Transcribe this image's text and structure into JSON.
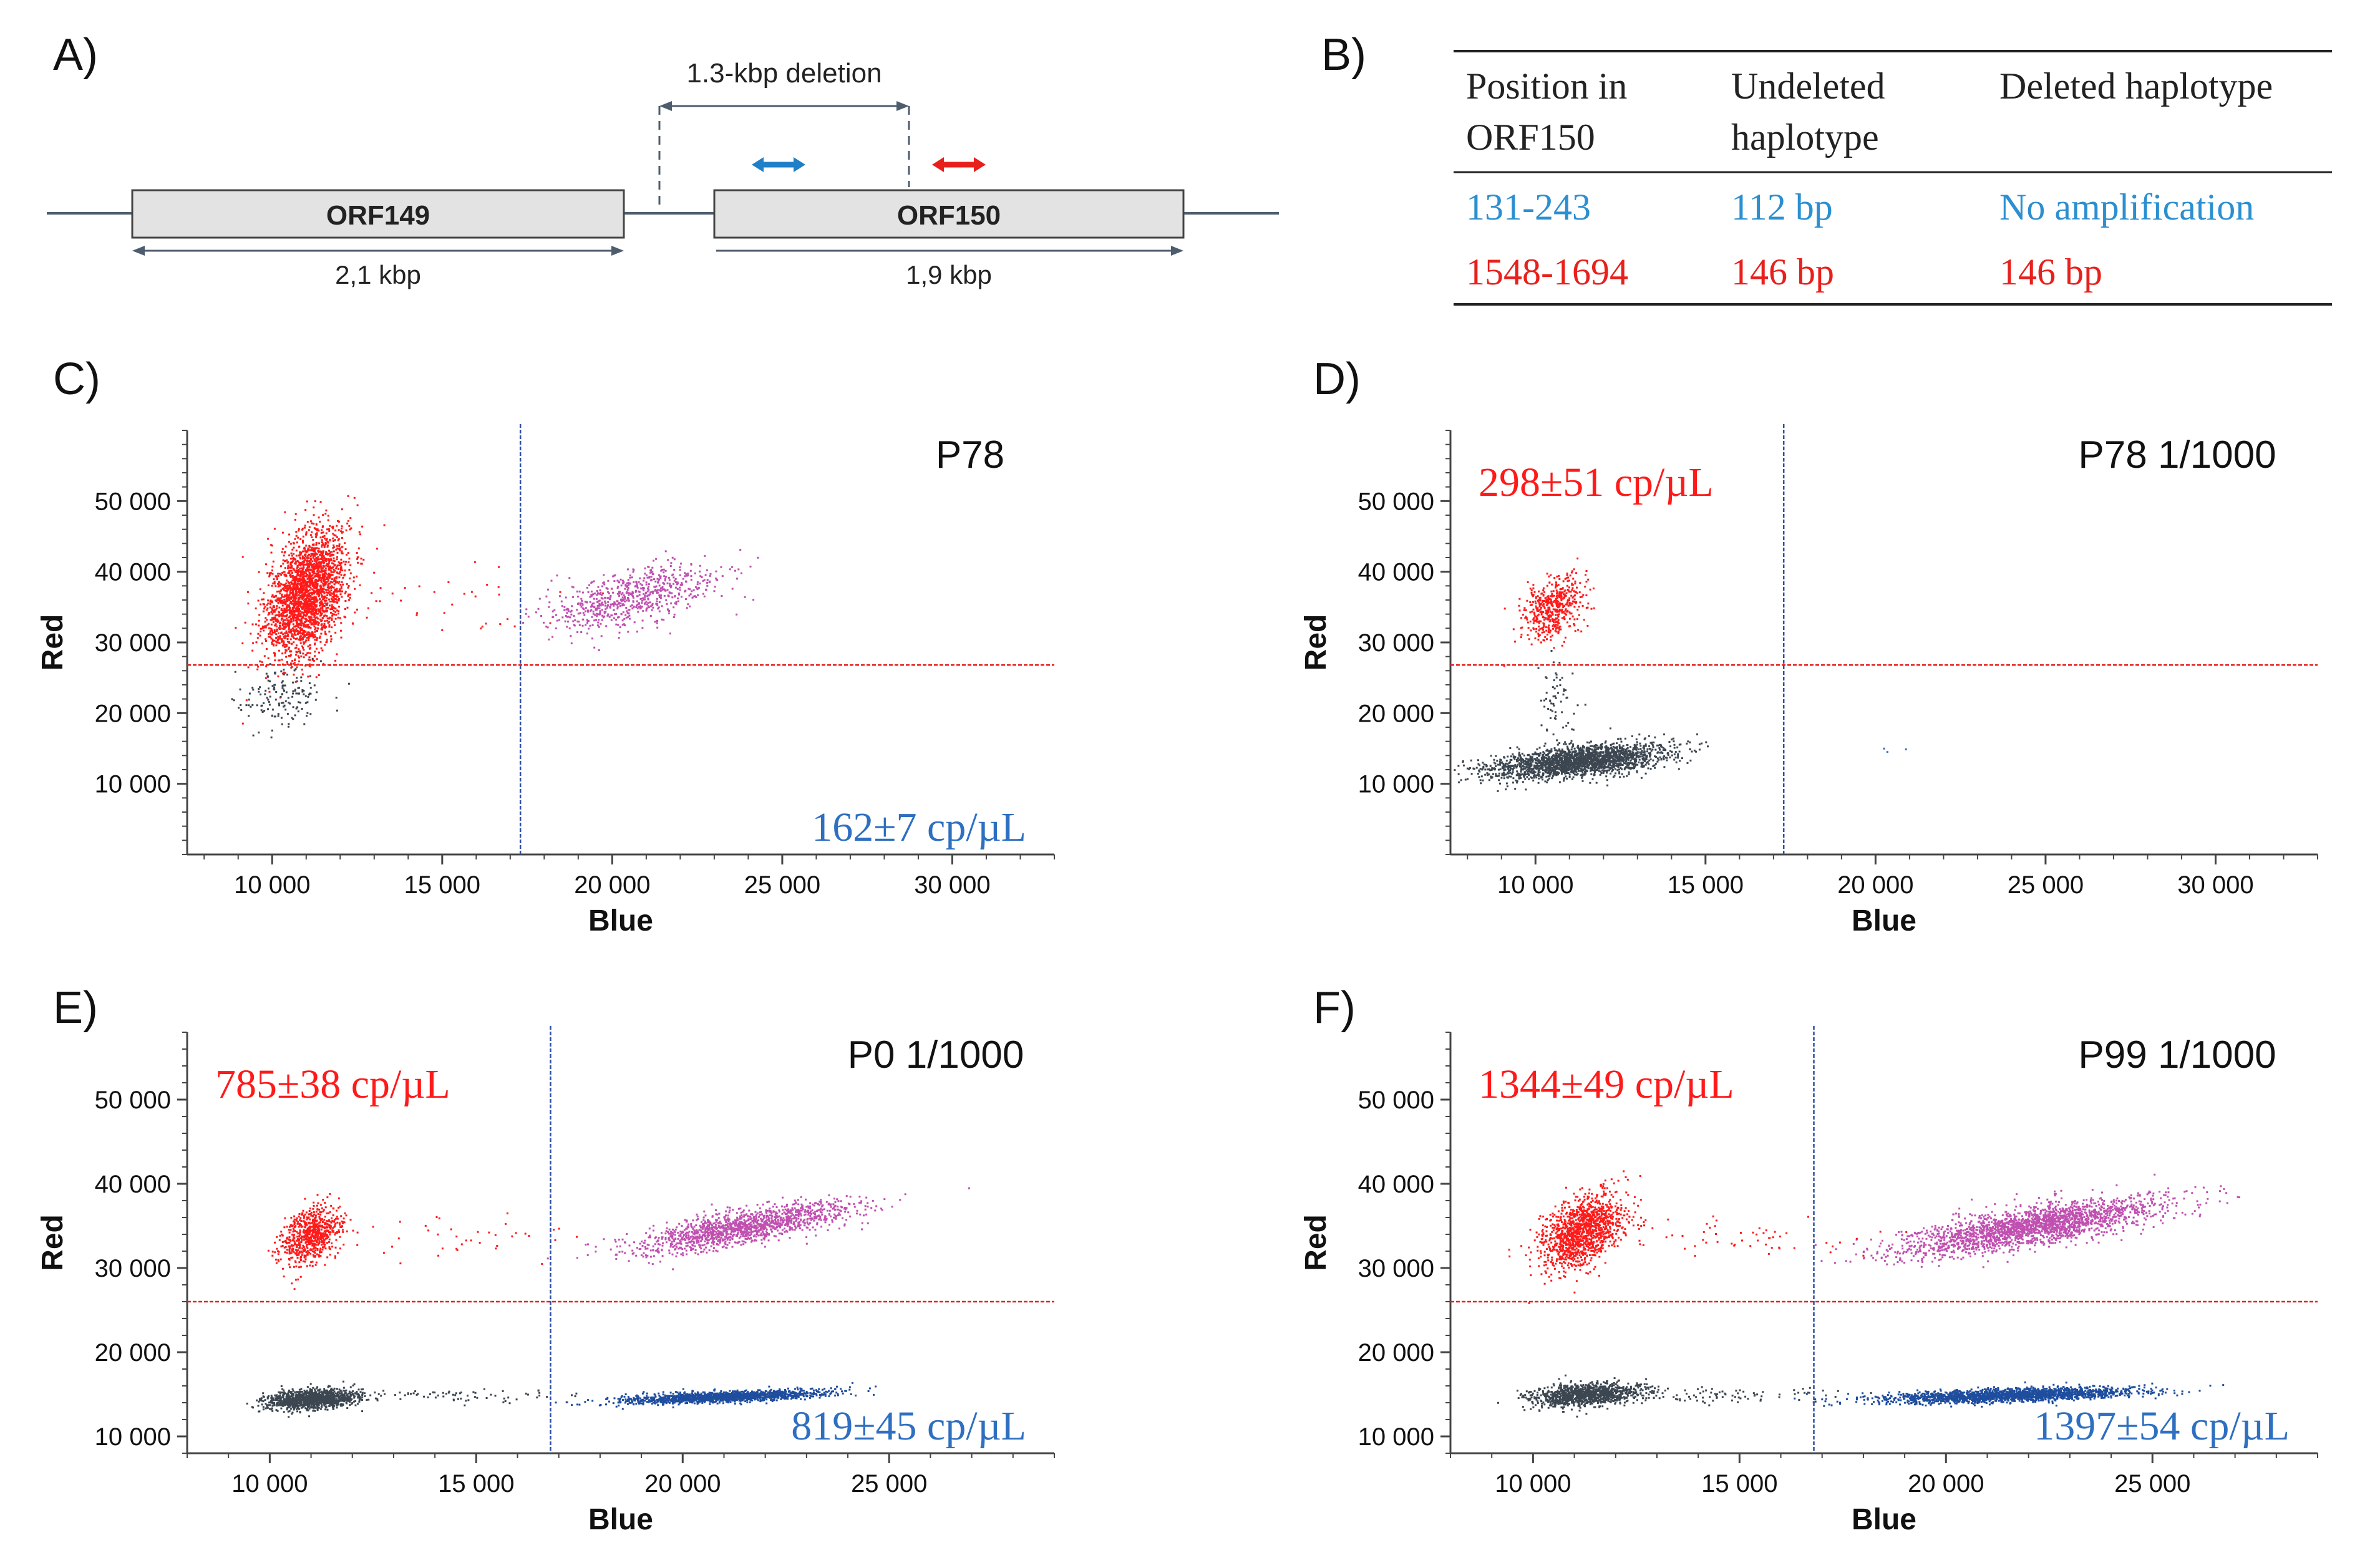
{
  "panel_a": {
    "panel_label": "A)",
    "deletion_label": "1.3-kbp deletion",
    "orf149_label": "ORF149",
    "orf150_label": "ORF150",
    "orf149_size": "2,1 kbp",
    "orf150_size": "1,9 kbp",
    "colors": {
      "blue_amplicon": "#1f7fc7",
      "red_amplicon": "#e8201c",
      "box_fill": "#e3e3e3",
      "line": "#4d5d6e"
    }
  },
  "panel_b": {
    "panel_label": "B)",
    "headers": [
      [
        "Position in",
        "ORF150"
      ],
      [
        "Undeleted",
        "haplotype"
      ],
      [
        "Deleted haplotype"
      ]
    ],
    "rows": [
      {
        "position": "131-243",
        "undeleted": "112 bp",
        "deleted": "No amplification",
        "color": "#2b8fd0"
      },
      {
        "position": "1548-1694",
        "undeleted": "146 bp",
        "deleted": "146 bp",
        "color": "#e8201c"
      }
    ]
  },
  "chart_data": [
    {
      "id": "C",
      "panel_label": "C)",
      "type": "scatter",
      "title": "P78",
      "xlabel": "Blue",
      "ylabel": "Red",
      "xlim": [
        7500,
        33000
      ],
      "ylim": [
        0,
        60000
      ],
      "xticks": [
        10000,
        15000,
        20000,
        25000,
        30000
      ],
      "xtick_labels": [
        "10 000",
        "15 000",
        "20 000",
        "25 000",
        "30 000"
      ],
      "yticks": [
        10000,
        20000,
        30000,
        40000,
        50000
      ],
      "ytick_labels": [
        "10 000",
        "20 000",
        "30 000",
        "40 000",
        "50 000"
      ],
      "red_threshold": 26800,
      "blue_threshold": 17300,
      "annotations": [
        {
          "text": "162±7 cp/µL",
          "color": "#2e6fc0",
          "corner": "bottom-right"
        }
      ],
      "clusters": [
        {
          "name": "red-positive",
          "color": "#ff1a1a",
          "count": 2400,
          "center": [
            11000,
            37000
          ],
          "spread": [
            600,
            4500
          ],
          "corr": 0.4
        },
        {
          "name": "double-positive",
          "color": "#c050b0",
          "count": 700,
          "center": [
            20500,
            36500
          ],
          "spread": [
            1300,
            2300
          ],
          "corr": 0.6
        },
        {
          "name": "negative",
          "color": "#3c4650",
          "count": 150,
          "center": [
            10300,
            22500
          ],
          "spread": [
            700,
            2300
          ],
          "corr": 0.2
        },
        {
          "name": "red-rain",
          "color": "#ff1a1a",
          "count": 30,
          "center": [
            15500,
            36000
          ],
          "spread": [
            1800,
            3000
          ],
          "corr": 0
        }
      ]
    },
    {
      "id": "D",
      "panel_label": "D)",
      "type": "scatter",
      "title": "P78 1/1000",
      "xlabel": "Blue",
      "ylabel": "Red",
      "xlim": [
        7500,
        33000
      ],
      "ylim": [
        0,
        60000
      ],
      "xticks": [
        10000,
        15000,
        20000,
        25000,
        30000
      ],
      "xtick_labels": [
        "10 000",
        "15 000",
        "20 000",
        "25 000",
        "30 000"
      ],
      "yticks": [
        10000,
        20000,
        30000,
        40000,
        50000
      ],
      "ytick_labels": [
        "10 000",
        "20 000",
        "30 000",
        "40 000",
        "50 000"
      ],
      "red_threshold": 26800,
      "blue_threshold": 17300,
      "annotations": [
        {
          "text": "298±51 cp/µL",
          "color": "#ff1a1a",
          "corner": "top-left"
        }
      ],
      "clusters": [
        {
          "name": "negative",
          "color": "#3c4650",
          "count": 2200,
          "center": [
            11200,
            13300
          ],
          "spread": [
            1300,
            1200
          ],
          "corr": 0.5
        },
        {
          "name": "red-positive",
          "color": "#ff1a1a",
          "count": 500,
          "center": [
            10500,
            35000
          ],
          "spread": [
            450,
            2300
          ],
          "corr": 0.4
        },
        {
          "name": "negative-rain",
          "color": "#3c4650",
          "count": 60,
          "center": [
            10600,
            22000
          ],
          "spread": [
            250,
            2500
          ],
          "corr": 0
        },
        {
          "name": "blue-positive",
          "color": "#2e6fc0",
          "count": 3,
          "center": [
            20300,
            15000
          ],
          "spread": [
            400,
            300
          ],
          "corr": 0
        }
      ]
    },
    {
      "id": "E",
      "panel_label": "E)",
      "type": "scatter",
      "title": "P0 1/1000",
      "xlabel": "Blue",
      "ylabel": "Red",
      "xlim": [
        8000,
        29000
      ],
      "ylim": [
        8000,
        58000
      ],
      "xticks": [
        10000,
        15000,
        20000,
        25000
      ],
      "xtick_labels": [
        "10 000",
        "15 000",
        "20 000",
        "25 000"
      ],
      "yticks": [
        10000,
        20000,
        30000,
        40000,
        50000
      ],
      "ytick_labels": [
        "10 000",
        "20 000",
        "30 000",
        "40 000",
        "50 000"
      ],
      "red_threshold": 26000,
      "blue_threshold": 16800,
      "annotations": [
        {
          "text": "785±38 cp/µL",
          "color": "#ff1a1a",
          "corner": "top-left"
        },
        {
          "text": "819±45 cp/µL",
          "color": "#2e6fc0",
          "corner": "bottom-right"
        }
      ],
      "clusters": [
        {
          "name": "negative",
          "color": "#3c4650",
          "count": 1200,
          "center": [
            11000,
            14500
          ],
          "spread": [
            550,
            600
          ],
          "corr": 0.3
        },
        {
          "name": "red-positive",
          "color": "#ff1a1a",
          "count": 700,
          "center": [
            11000,
            34000
          ],
          "spread": [
            350,
            1800
          ],
          "corr": 0.4
        },
        {
          "name": "double-positive",
          "color": "#c050b0",
          "count": 1400,
          "center": [
            21500,
            35000
          ],
          "spread": [
            1300,
            1500
          ],
          "corr": 0.75
        },
        {
          "name": "blue-positive",
          "color": "#1e4d9e",
          "count": 1400,
          "center": [
            21000,
            14800
          ],
          "spread": [
            1300,
            400
          ],
          "corr": 0.6
        },
        {
          "name": "negative-rain",
          "color": "#3c4650",
          "count": 80,
          "center": [
            14000,
            15000
          ],
          "spread": [
            1500,
            400
          ],
          "corr": 0
        },
        {
          "name": "red-rain",
          "color": "#ff1a1a",
          "count": 40,
          "center": [
            15000,
            34000
          ],
          "spread": [
            1500,
            1200
          ],
          "corr": 0
        }
      ]
    },
    {
      "id": "F",
      "panel_label": "F)",
      "type": "scatter",
      "title": "P99 1/1000",
      "xlabel": "Blue",
      "ylabel": "Red",
      "xlim": [
        8000,
        29000
      ],
      "ylim": [
        8000,
        58000
      ],
      "xticks": [
        10000,
        15000,
        20000,
        25000
      ],
      "xtick_labels": [
        "10 000",
        "15 000",
        "20 000",
        "25 000"
      ],
      "yticks": [
        10000,
        20000,
        30000,
        40000,
        50000
      ],
      "ytick_labels": [
        "10 000",
        "20 000",
        "30 000",
        "40 000",
        "50 000"
      ],
      "red_threshold": 26000,
      "blue_threshold": 16800,
      "annotations": [
        {
          "text": "1344±49 cp/µL",
          "color": "#ff1a1a",
          "corner": "top-left"
        },
        {
          "text": "1397±54 cp/µL",
          "color": "#2e6fc0",
          "corner": "bottom-right"
        }
      ],
      "clusters": [
        {
          "name": "negative",
          "color": "#3c4650",
          "count": 1100,
          "center": [
            11200,
            15000
          ],
          "spread": [
            650,
            700
          ],
          "corr": 0.3
        },
        {
          "name": "red-positive",
          "color": "#ff1a1a",
          "count": 1300,
          "center": [
            11200,
            34500
          ],
          "spread": [
            500,
            2200
          ],
          "corr": 0.45
        },
        {
          "name": "double-positive",
          "color": "#c050b0",
          "count": 2200,
          "center": [
            22000,
            35000
          ],
          "spread": [
            1600,
            1700
          ],
          "corr": 0.75
        },
        {
          "name": "blue-positive",
          "color": "#1e4d9e",
          "count": 1800,
          "center": [
            21500,
            15000
          ],
          "spread": [
            1500,
            450
          ],
          "corr": 0.5
        },
        {
          "name": "negative-rain",
          "color": "#3c4650",
          "count": 100,
          "center": [
            14500,
            15000
          ],
          "spread": [
            1500,
            450
          ],
          "corr": 0
        },
        {
          "name": "red-rain",
          "color": "#ff1a1a",
          "count": 60,
          "center": [
            15000,
            33500
          ],
          "spread": [
            1600,
            1300
          ],
          "corr": 0
        }
      ]
    }
  ]
}
